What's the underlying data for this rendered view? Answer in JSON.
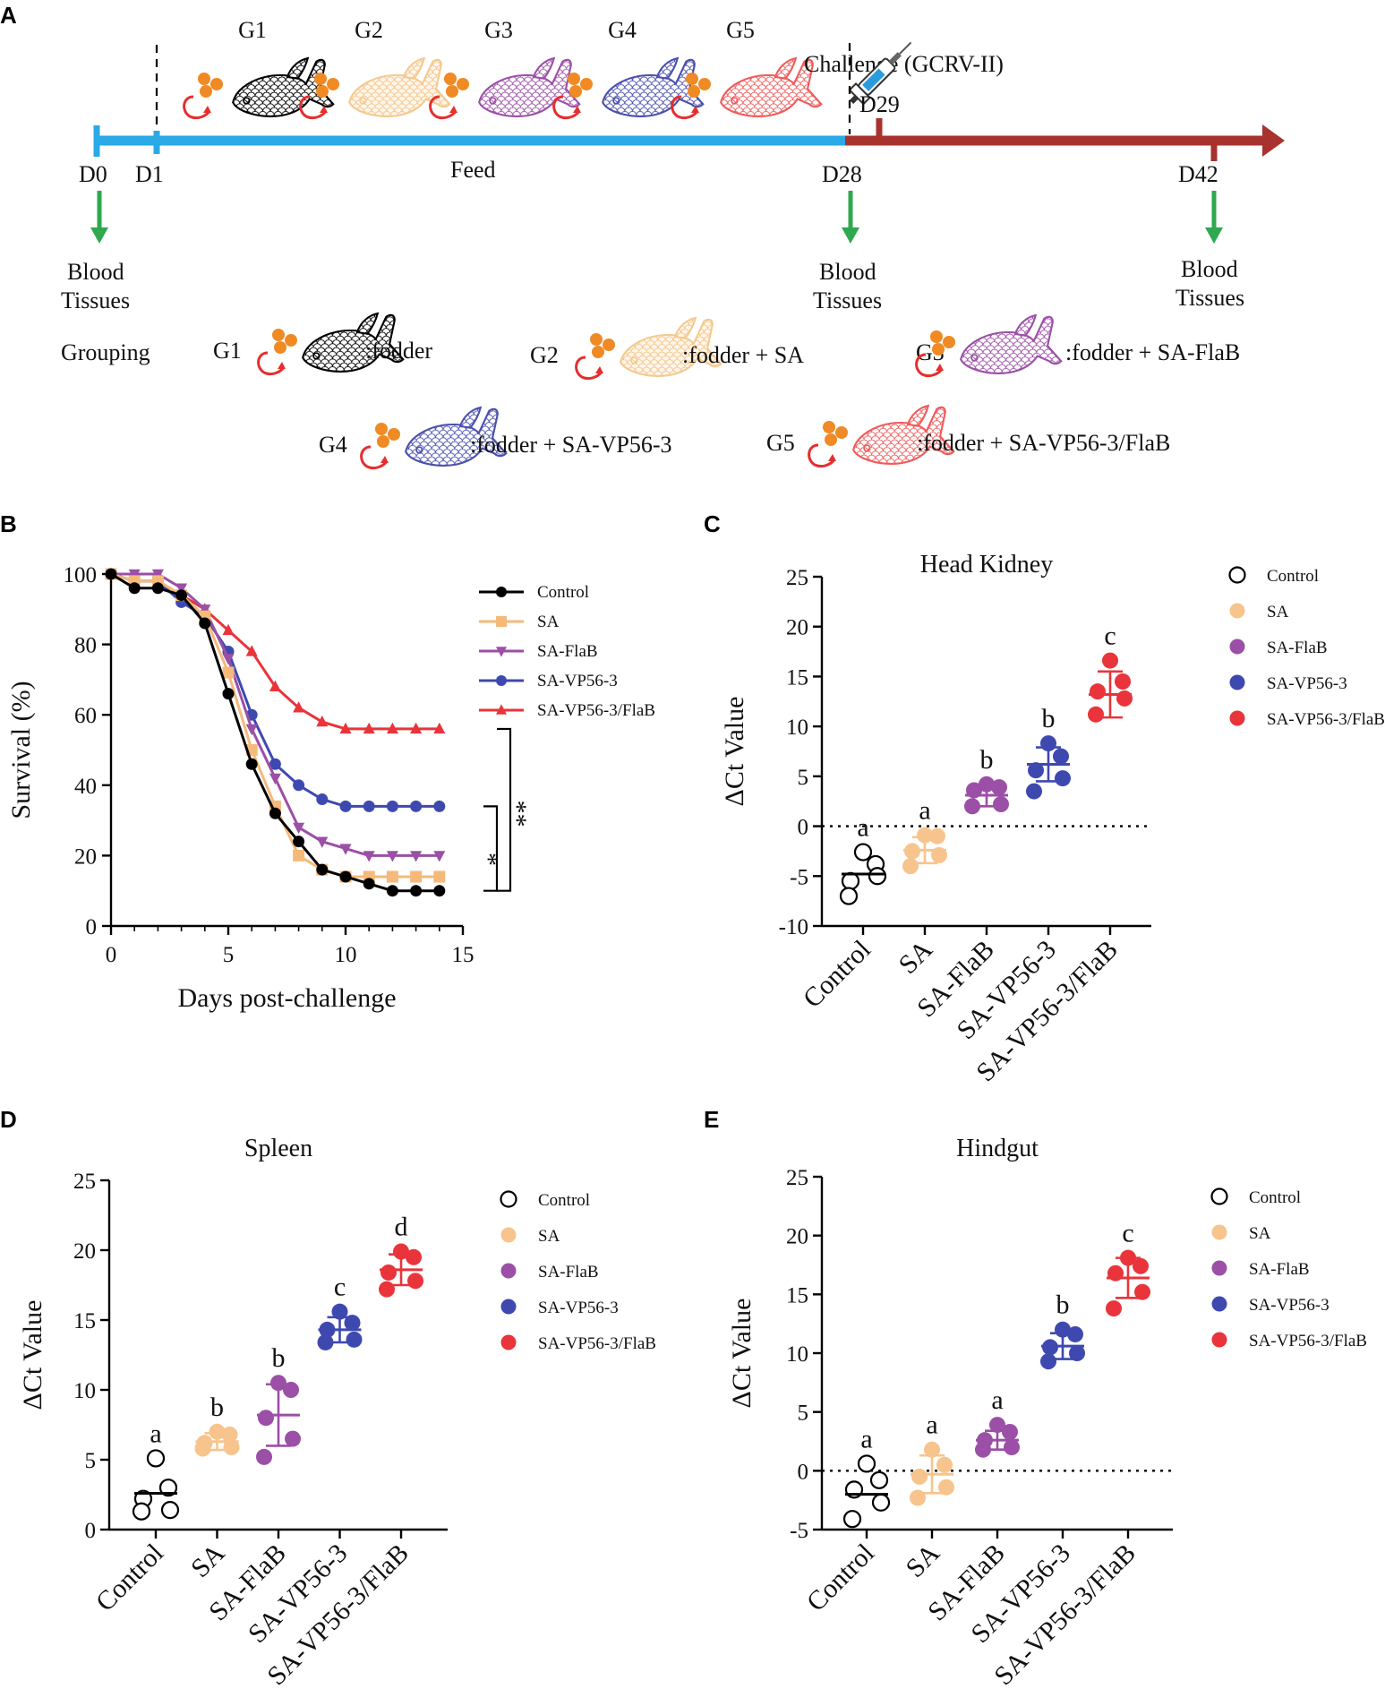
{
  "panel_a": {
    "label": "A",
    "groups": [
      "G1",
      "G2",
      "G3",
      "G4",
      "G5"
    ],
    "challenge_text": "Challenge (GCRV-II)",
    "day_labels": {
      "d0": "D0",
      "d1": "D1",
      "d28": "D28",
      "d29": "D29",
      "d42": "D42"
    },
    "feed_label": "Feed",
    "sampling": [
      {
        "line1": "Blood",
        "line2": "Tissues"
      },
      {
        "line1": "Blood",
        "line2": "Tissues"
      },
      {
        "line1": "Blood",
        "line2": "Tissues"
      }
    ],
    "grouping_label": "Grouping",
    "grouping_items": [
      {
        "group": "G1",
        "desc": ":fodder",
        "color": "#000000",
        "fill": "#ffffff"
      },
      {
        "group": "G2",
        "desc": ":fodder + SA",
        "color": "#f5c98f",
        "fill": "#fff6ea"
      },
      {
        "group": "G3",
        "desc": ":fodder + SA-FlaB",
        "color": "#9b4fa6",
        "fill": "#ffffff"
      },
      {
        "group": "G4",
        "desc": ":fodder + SA-VP56-3",
        "color": "#4a4fae",
        "fill": "#ffffff"
      },
      {
        "group": "G5",
        "desc": ":fodder + SA-VP56-3/FlaB",
        "color": "#f05a5a",
        "fill": "#ffffff"
      }
    ],
    "colors": {
      "feed_line": "#29a9e6",
      "challenge_line": "#a8322d",
      "arrow": "#2fa84f",
      "pellet": "#f08a24",
      "swirl": "#e62e2e"
    }
  },
  "chart_data": [
    {
      "panel": "B",
      "type": "line",
      "xlabel": "Days post-challenge",
      "ylabel": "Survival (%)",
      "xlim": [
        0,
        15
      ],
      "ylim": [
        0,
        100
      ],
      "xticks": [
        "0",
        "5",
        "10",
        "15"
      ],
      "yticks": [
        "0",
        "20",
        "40",
        "60",
        "80",
        "100"
      ],
      "x": [
        0,
        1,
        2,
        3,
        4,
        5,
        6,
        7,
        8,
        9,
        10,
        11,
        12,
        13,
        14
      ],
      "series": [
        {
          "name": "Control",
          "marker": "circle",
          "color": "#000000",
          "values": [
            100,
            96,
            96,
            94,
            86,
            66,
            46,
            32,
            24,
            16,
            14,
            12,
            10,
            10,
            10
          ]
        },
        {
          "name": "SA",
          "marker": "square",
          "color": "#f5b97a",
          "values": [
            100,
            98,
            98,
            94,
            88,
            72,
            50,
            34,
            20,
            16,
            14,
            14,
            14,
            14,
            14
          ]
        },
        {
          "name": "SA-FlaB",
          "marker": "triangle-down",
          "color": "#9b4fa6",
          "values": [
            100,
            100,
            100,
            96,
            90,
            76,
            56,
            42,
            28,
            24,
            22,
            20,
            20,
            20,
            20
          ]
        },
        {
          "name": "SA-VP56-3",
          "marker": "circle",
          "color": "#3e49b0",
          "values": [
            100,
            98,
            98,
            92,
            88,
            78,
            60,
            46,
            40,
            36,
            34,
            34,
            34,
            34,
            34
          ]
        },
        {
          "name": "SA-VP56-3/FlaB",
          "marker": "triangle-up",
          "color": "#e8343a",
          "values": [
            100,
            98,
            98,
            94,
            90,
            84,
            78,
            68,
            62,
            58,
            56,
            56,
            56,
            56,
            56
          ]
        }
      ],
      "significance": [
        {
          "between": [
            "SA-VP56-3",
            "Control"
          ],
          "label": "*"
        },
        {
          "between": [
            "SA-VP56-3/FlaB",
            "Control"
          ],
          "label": "**"
        }
      ],
      "legend": "right"
    },
    {
      "panel": "C",
      "type": "scatter",
      "title": "Head Kidney",
      "ylabel": "ΔCt Value",
      "ylim": [
        -10,
        25
      ],
      "yticks": [
        "-10",
        "-5",
        "0",
        "5",
        "10",
        "15",
        "20",
        "25"
      ],
      "zero_line": true,
      "categories": [
        "Control",
        "SA",
        "SA-FlaB",
        "SA-VP56-3",
        "SA-VP56-3/FlaB"
      ],
      "groups": [
        {
          "name": "Control",
          "color": "#000000",
          "open": true,
          "points": [
            -2.6,
            -3.8,
            -5.5,
            -5.0,
            -7.0
          ],
          "mean": -4.8,
          "sd": 0,
          "letter": "a"
        },
        {
          "name": "SA",
          "color": "#f7c48d",
          "open": false,
          "points": [
            -0.9,
            -1.0,
            -2.5,
            -2.9,
            -4.0
          ],
          "mean": -2.4,
          "sd": 1.3,
          "letter": "a"
        },
        {
          "name": "SA-FlaB",
          "color": "#9b4fa6",
          "open": false,
          "points": [
            4.2,
            3.9,
            3.6,
            2.2,
            2.0
          ],
          "mean": 3.1,
          "sd": 1.1,
          "letter": "b"
        },
        {
          "name": "SA-VP56-3",
          "color": "#3e49b0",
          "open": false,
          "points": [
            8.3,
            7.0,
            5.6,
            4.8,
            3.5
          ],
          "mean": 6.2,
          "sd": 1.7,
          "letter": "b"
        },
        {
          "name": "SA-VP56-3/FlaB",
          "color": "#e8343a",
          "open": false,
          "points": [
            16.6,
            14.5,
            13.5,
            12.8,
            11.2
          ],
          "mean": 13.2,
          "sd": 2.3,
          "letter": "c"
        }
      ],
      "legend": "right"
    },
    {
      "panel": "D",
      "type": "scatter",
      "title": "Spleen",
      "ylabel": "ΔCt Value",
      "ylim": [
        0,
        25
      ],
      "yticks": [
        "0",
        "5",
        "10",
        "15",
        "20",
        "25"
      ],
      "zero_line": false,
      "categories": [
        "Control",
        "SA",
        "SA-FlaB",
        "SA-VP56-3",
        "SA-VP56-3/FlaB"
      ],
      "groups": [
        {
          "name": "Control",
          "color": "#000000",
          "open": true,
          "points": [
            5.1,
            3.0,
            2.2,
            1.4,
            1.3
          ],
          "mean": 2.6,
          "sd": 0,
          "letter": "a"
        },
        {
          "name": "SA",
          "color": "#f7c48d",
          "open": false,
          "points": [
            7.0,
            6.8,
            6.2,
            5.9,
            5.8
          ],
          "mean": 6.3,
          "sd": 0.6,
          "letter": "b"
        },
        {
          "name": "SA-FlaB",
          "color": "#9b4fa6",
          "open": false,
          "points": [
            10.5,
            10.0,
            8.0,
            6.5,
            5.2
          ],
          "mean": 8.2,
          "sd": 2.2,
          "letter": "b"
        },
        {
          "name": "SA-VP56-3",
          "color": "#3e49b0",
          "open": false,
          "points": [
            15.6,
            14.8,
            14.3,
            13.6,
            13.4
          ],
          "mean": 14.3,
          "sd": 0.9,
          "letter": "c"
        },
        {
          "name": "SA-VP56-3/FlaB",
          "color": "#e8343a",
          "open": false,
          "points": [
            19.9,
            19.5,
            18.4,
            17.8,
            17.2
          ],
          "mean": 18.6,
          "sd": 1.1,
          "letter": "d"
        }
      ],
      "legend": "right"
    },
    {
      "panel": "E",
      "type": "scatter",
      "title": "Hindgut",
      "ylabel": "ΔCt Value",
      "ylim": [
        -5,
        25
      ],
      "yticks": [
        "-5",
        "0",
        "5",
        "10",
        "15",
        "20",
        "25"
      ],
      "zero_line": true,
      "categories": [
        "Control",
        "SA",
        "SA-FlaB",
        "SA-VP56-3",
        "SA-VP56-3/FlaB"
      ],
      "groups": [
        {
          "name": "Control",
          "color": "#000000",
          "open": true,
          "points": [
            0.6,
            -0.8,
            -1.6,
            -2.7,
            -4.1
          ],
          "mean": -2.0,
          "sd": 0,
          "letter": "a"
        },
        {
          "name": "SA",
          "color": "#f7c48d",
          "open": false,
          "points": [
            1.8,
            0.5,
            -0.5,
            -1.4,
            -2.3
          ],
          "mean": -0.3,
          "sd": 1.6,
          "letter": "a"
        },
        {
          "name": "SA-FlaB",
          "color": "#9b4fa6",
          "open": false,
          "points": [
            3.9,
            3.3,
            2.6,
            2.0,
            1.8
          ],
          "mean": 2.6,
          "sd": 0.8,
          "letter": "a"
        },
        {
          "name": "SA-VP56-3",
          "color": "#3e49b0",
          "open": false,
          "points": [
            12.0,
            11.6,
            10.5,
            10.0,
            9.3
          ],
          "mean": 10.6,
          "sd": 1.1,
          "letter": "b"
        },
        {
          "name": "SA-VP56-3/FlaB",
          "color": "#e8343a",
          "open": false,
          "points": [
            18.1,
            17.4,
            16.8,
            15.2,
            13.8
          ],
          "mean": 16.4,
          "sd": 1.7,
          "letter": "c"
        }
      ],
      "legend": "right"
    }
  ]
}
